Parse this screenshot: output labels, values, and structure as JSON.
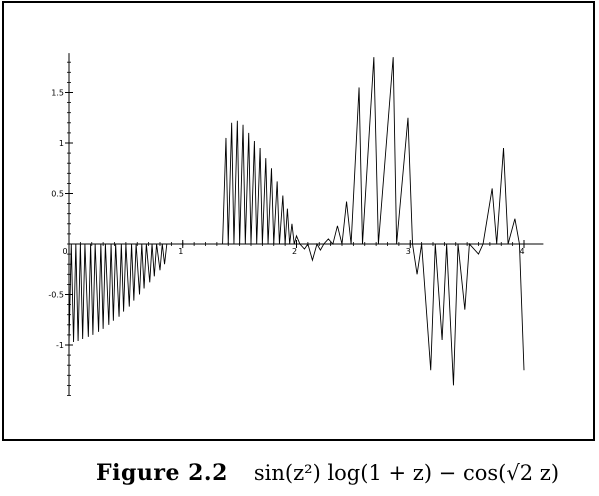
{
  "figure": {
    "label": "Figure 2.2",
    "formula": "sin(z²) log(1 + z) − cos(√2 z)"
  },
  "chart_data": {
    "type": "line",
    "title": "",
    "xlabel": "",
    "ylabel": "",
    "xlim": [
      0,
      4.1
    ],
    "ylim": [
      -1.5,
      1.9
    ],
    "x_ticks": [
      {
        "value": 0,
        "label": "0"
      },
      {
        "value": 1,
        "label": "1"
      },
      {
        "value": 2,
        "label": "2"
      },
      {
        "value": 3,
        "label": "3"
      },
      {
        "value": 4,
        "label": "4"
      }
    ],
    "y_ticks": [
      {
        "value": 1.5,
        "label": "1.5"
      },
      {
        "value": 1,
        "label": "1"
      },
      {
        "value": 0.5,
        "label": "0.5"
      },
      {
        "value": -0.5,
        "label": "-0.5"
      },
      {
        "value": -1,
        "label": "-1"
      }
    ],
    "grid": false,
    "series": [
      {
        "color": "#000000",
        "points": [
          [
            0.0,
            -0.98
          ],
          [
            0.02,
            0.0
          ],
          [
            0.04,
            -0.97
          ],
          [
            0.06,
            0.0
          ],
          [
            0.08,
            -0.96
          ],
          [
            0.1,
            0.0
          ],
          [
            0.12,
            -0.94
          ],
          [
            0.14,
            0.0
          ],
          [
            0.17,
            -0.92
          ],
          [
            0.19,
            0.0
          ],
          [
            0.21,
            -0.9
          ],
          [
            0.23,
            0.0
          ],
          [
            0.26,
            -0.87
          ],
          [
            0.28,
            0.0
          ],
          [
            0.3,
            -0.84
          ],
          [
            0.32,
            0.0
          ],
          [
            0.35,
            -0.8
          ],
          [
            0.37,
            0.0
          ],
          [
            0.39,
            -0.76
          ],
          [
            0.41,
            0.0
          ],
          [
            0.44,
            -0.72
          ],
          [
            0.46,
            0.0
          ],
          [
            0.48,
            -0.67
          ],
          [
            0.5,
            0.0
          ],
          [
            0.53,
            -0.62
          ],
          [
            0.55,
            0.0
          ],
          [
            0.57,
            -0.56
          ],
          [
            0.59,
            0.0
          ],
          [
            0.62,
            -0.5
          ],
          [
            0.64,
            0.0
          ],
          [
            0.66,
            -0.44
          ],
          [
            0.68,
            0.0
          ],
          [
            0.71,
            -0.38
          ],
          [
            0.73,
            0.0
          ],
          [
            0.75,
            -0.32
          ],
          [
            0.77,
            0.0
          ],
          [
            0.8,
            -0.26
          ],
          [
            0.82,
            0.0
          ],
          [
            0.84,
            -0.2
          ],
          [
            0.86,
            0.0
          ],
          [
            1.35,
            0.0
          ],
          [
            1.38,
            1.05
          ],
          [
            1.4,
            0.0
          ],
          [
            1.43,
            1.2
          ],
          [
            1.45,
            0.0
          ],
          [
            1.48,
            1.22
          ],
          [
            1.5,
            0.0
          ],
          [
            1.53,
            1.18
          ],
          [
            1.55,
            0.0
          ],
          [
            1.58,
            1.1
          ],
          [
            1.6,
            0.0
          ],
          [
            1.63,
            1.02
          ],
          [
            1.65,
            0.0
          ],
          [
            1.68,
            0.95
          ],
          [
            1.7,
            0.0
          ],
          [
            1.73,
            0.85
          ],
          [
            1.75,
            0.0
          ],
          [
            1.78,
            0.75
          ],
          [
            1.8,
            0.0
          ],
          [
            1.83,
            0.62
          ],
          [
            1.85,
            0.0
          ],
          [
            1.88,
            0.48
          ],
          [
            1.9,
            0.0
          ],
          [
            1.92,
            0.35
          ],
          [
            1.94,
            0.0
          ],
          [
            1.96,
            0.2
          ],
          [
            1.98,
            0.0
          ],
          [
            2.0,
            0.08
          ],
          [
            2.03,
            0.0
          ],
          [
            2.07,
            -0.05
          ],
          [
            2.1,
            0.0
          ],
          [
            2.14,
            -0.16
          ],
          [
            2.18,
            0.0
          ],
          [
            2.21,
            -0.06
          ],
          [
            2.24,
            0.0
          ],
          [
            2.28,
            0.05
          ],
          [
            2.32,
            0.0
          ],
          [
            2.36,
            0.18
          ],
          [
            2.4,
            0.0
          ],
          [
            2.44,
            0.42
          ],
          [
            2.48,
            0.0
          ],
          [
            2.55,
            1.55
          ],
          [
            2.58,
            0.0
          ],
          [
            2.68,
            1.85
          ],
          [
            2.72,
            0.0
          ],
          [
            2.85,
            1.85
          ],
          [
            2.88,
            0.0
          ],
          [
            2.98,
            1.25
          ],
          [
            3.02,
            0.0
          ],
          [
            3.06,
            -0.3
          ],
          [
            3.1,
            0.0
          ],
          [
            3.18,
            -1.25
          ],
          [
            3.22,
            0.0
          ],
          [
            3.28,
            -0.95
          ],
          [
            3.32,
            0.0
          ],
          [
            3.38,
            -1.4
          ],
          [
            3.42,
            0.0
          ],
          [
            3.48,
            -0.65
          ],
          [
            3.52,
            0.0
          ],
          [
            3.6,
            -0.1
          ],
          [
            3.64,
            0.0
          ],
          [
            3.72,
            0.55
          ],
          [
            3.76,
            0.0
          ],
          [
            3.82,
            0.95
          ],
          [
            3.86,
            0.0
          ],
          [
            3.92,
            0.25
          ],
          [
            3.96,
            0.0
          ],
          [
            4.0,
            -1.25
          ]
        ]
      }
    ]
  }
}
